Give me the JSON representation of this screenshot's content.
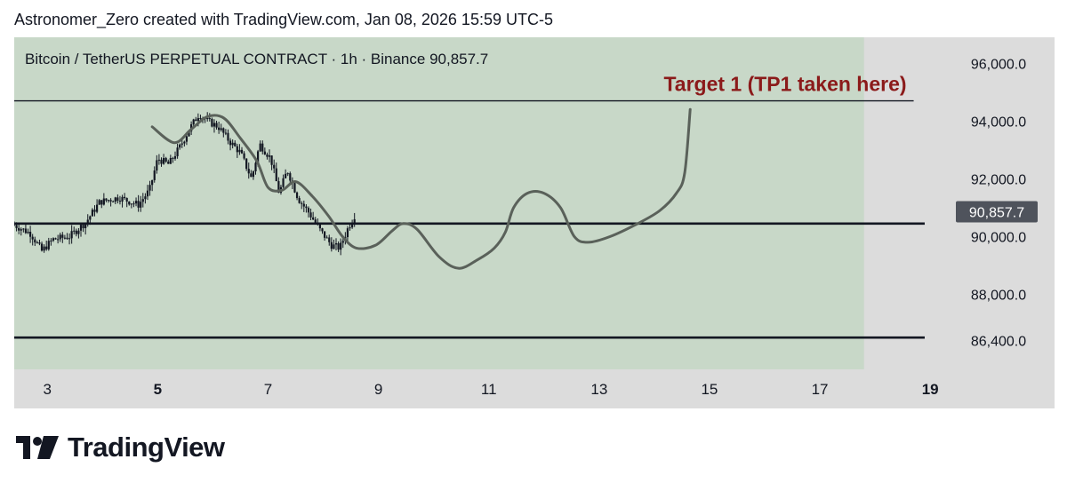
{
  "header": {
    "attribution": "Astronomer_Zero created with TradingView.com, Jan 08, 2026 15:59 UTC-5"
  },
  "chart_data": {
    "type": "candlestick",
    "legend": "Bitcoin / TetherUS PERPETUAL CONTRACT · 1h · Binance  90,857.7",
    "last_price": 90857.7,
    "last_price_label": "90,857.7",
    "annotation": "Target 1 (TP1 taken here)",
    "x_range": [
      2.4,
      19.4
    ],
    "y_range": [
      85400,
      96900
    ],
    "x_ticks": [
      {
        "value": 3,
        "label": "3",
        "bold": false
      },
      {
        "value": 5,
        "label": "5",
        "bold": true
      },
      {
        "value": 7,
        "label": "7",
        "bold": false
      },
      {
        "value": 9,
        "label": "9",
        "bold": false
      },
      {
        "value": 11,
        "label": "11",
        "bold": false
      },
      {
        "value": 13,
        "label": "13",
        "bold": false
      },
      {
        "value": 15,
        "label": "15",
        "bold": false
      },
      {
        "value": 17,
        "label": "17",
        "bold": false
      },
      {
        "value": 19,
        "label": "19",
        "bold": true
      }
    ],
    "y_ticks": [
      {
        "value": 96000,
        "label": "96,000.0"
      },
      {
        "value": 94000,
        "label": "94,000.0"
      },
      {
        "value": 92000,
        "label": "92,000.0"
      },
      {
        "value": 90000,
        "label": "90,000.0"
      },
      {
        "value": 88000,
        "label": "88,000.0"
      },
      {
        "value": 86400,
        "label": "86,400.0"
      }
    ],
    "horizontal_lines": [
      {
        "name": "target-1-line",
        "price": 94700,
        "x_start": 2.4,
        "x_end": 18.7
      },
      {
        "name": "support-line",
        "price": 90450,
        "x_start": 2.4,
        "x_end": 18.9
      },
      {
        "name": "lower-support-line",
        "price": 86500,
        "x_start": 2.4,
        "x_end": 18.9
      }
    ],
    "shaded_region": {
      "x_start": 2.4,
      "x_end": 17.8,
      "y_start": 85400,
      "y_end": 96900,
      "color": "#c8d8c8"
    },
    "price_anchors": [
      [
        2.4,
        90400
      ],
      [
        2.7,
        90100
      ],
      [
        2.9,
        89500
      ],
      [
        3.1,
        89900
      ],
      [
        3.4,
        90000
      ],
      [
        3.7,
        90500
      ],
      [
        3.95,
        91200
      ],
      [
        4.3,
        91350
      ],
      [
        4.65,
        91100
      ],
      [
        4.85,
        91600
      ],
      [
        5.0,
        92700
      ],
      [
        5.2,
        92500
      ],
      [
        5.4,
        93100
      ],
      [
        5.6,
        93800
      ],
      [
        5.75,
        94250
      ],
      [
        5.9,
        94000
      ],
      [
        6.1,
        93800
      ],
      [
        6.3,
        93300
      ],
      [
        6.5,
        92900
      ],
      [
        6.7,
        92000
      ],
      [
        6.85,
        93200
      ],
      [
        7.05,
        92700
      ],
      [
        7.2,
        91500
      ],
      [
        7.35,
        92300
      ],
      [
        7.55,
        91300
      ],
      [
        7.75,
        90800
      ],
      [
        7.95,
        90200
      ],
      [
        8.15,
        89700
      ],
      [
        8.3,
        89600
      ],
      [
        8.45,
        90300
      ],
      [
        8.6,
        90850
      ]
    ],
    "projection_path": [
      [
        4.9,
        93800
      ],
      [
        5.3,
        93250
      ],
      [
        5.6,
        93700
      ],
      [
        5.9,
        94150
      ],
      [
        6.2,
        94100
      ],
      [
        6.5,
        93400
      ],
      [
        6.8,
        92600
      ],
      [
        7.0,
        91700
      ],
      [
        7.25,
        91600
      ],
      [
        7.5,
        91900
      ],
      [
        7.8,
        91400
      ],
      [
        8.1,
        90700
      ],
      [
        8.35,
        90000
      ],
      [
        8.6,
        89600
      ],
      [
        8.95,
        89700
      ],
      [
        9.25,
        90200
      ],
      [
        9.45,
        90450
      ],
      [
        9.7,
        90250
      ],
      [
        10.1,
        89300
      ],
      [
        10.45,
        88900
      ],
      [
        10.8,
        89200
      ],
      [
        11.1,
        89600
      ],
      [
        11.3,
        90150
      ],
      [
        11.45,
        91000
      ],
      [
        11.7,
        91500
      ],
      [
        12.0,
        91500
      ],
      [
        12.3,
        91000
      ],
      [
        12.55,
        90000
      ],
      [
        12.8,
        89800
      ],
      [
        13.2,
        90000
      ],
      [
        13.7,
        90450
      ],
      [
        14.1,
        90900
      ],
      [
        14.4,
        91500
      ],
      [
        14.55,
        92200
      ],
      [
        14.65,
        94400
      ]
    ]
  }
}
